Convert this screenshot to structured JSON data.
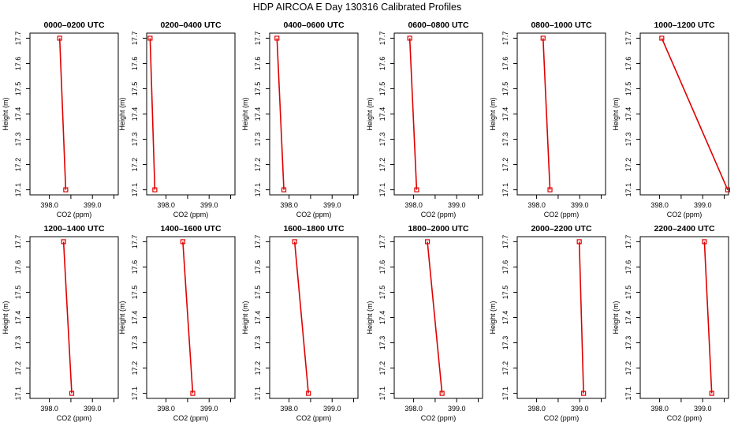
{
  "figure": {
    "title": "HDP AIRCOA E  Day 130316  Calibrated Profiles"
  },
  "style": {
    "line_color": "#e00000",
    "marker_color": "#e00000",
    "axis_color": "#000000",
    "background": "#ffffff"
  },
  "chart_data": [
    {
      "type": "line",
      "title": "0000–0200 UTC",
      "xlabel": "CO2 (ppm)",
      "ylabel": "Height (m)",
      "xlim": [
        397.55,
        399.6
      ],
      "ylim": [
        17.08,
        17.72
      ],
      "xticks": [
        398.0,
        398.5,
        399.0,
        399.5
      ],
      "xtick_labels": [
        "398.0",
        "",
        "399.0",
        ""
      ],
      "yticks": [
        17.1,
        17.2,
        17.3,
        17.4,
        17.5,
        17.6,
        17.7
      ],
      "series": [
        {
          "x": [
            398.24,
            398.38
          ],
          "y": [
            17.7,
            17.1
          ]
        }
      ]
    },
    {
      "type": "line",
      "title": "0200–0400 UTC",
      "xlabel": "CO2 (ppm)",
      "ylabel": "Height (m)",
      "xlim": [
        397.55,
        399.6
      ],
      "ylim": [
        17.08,
        17.72
      ],
      "xticks": [
        398.0,
        398.5,
        399.0,
        399.5
      ],
      "xtick_labels": [
        "398.0",
        "",
        "399.0",
        ""
      ],
      "yticks": [
        17.1,
        17.2,
        17.3,
        17.4,
        17.5,
        17.6,
        17.7
      ],
      "series": [
        {
          "x": [
            397.63,
            397.74
          ],
          "y": [
            17.7,
            17.1
          ]
        }
      ]
    },
    {
      "type": "line",
      "title": "0400–0600 UTC",
      "xlabel": "CO2 (ppm)",
      "ylabel": "Height (m)",
      "xlim": [
        397.55,
        399.6
      ],
      "ylim": [
        17.08,
        17.72
      ],
      "xticks": [
        398.0,
        398.5,
        399.0,
        399.5
      ],
      "xtick_labels": [
        "398.0",
        "",
        "399.0",
        ""
      ],
      "yticks": [
        17.1,
        17.2,
        17.3,
        17.4,
        17.5,
        17.6,
        17.7
      ],
      "series": [
        {
          "x": [
            397.72,
            397.88
          ],
          "y": [
            17.7,
            17.1
          ]
        }
      ]
    },
    {
      "type": "line",
      "title": "0600–0800 UTC",
      "xlabel": "CO2 (ppm)",
      "ylabel": "Height (m)",
      "xlim": [
        397.55,
        399.6
      ],
      "ylim": [
        17.08,
        17.72
      ],
      "xticks": [
        398.0,
        398.5,
        399.0,
        399.5
      ],
      "xtick_labels": [
        "398.0",
        "",
        "399.0",
        ""
      ],
      "yticks": [
        17.1,
        17.2,
        17.3,
        17.4,
        17.5,
        17.6,
        17.7
      ],
      "series": [
        {
          "x": [
            397.91,
            398.07
          ],
          "y": [
            17.7,
            17.1
          ]
        }
      ]
    },
    {
      "type": "line",
      "title": "0800–1000 UTC",
      "xlabel": "CO2 (ppm)",
      "ylabel": "Height (m)",
      "xlim": [
        397.55,
        399.6
      ],
      "ylim": [
        17.08,
        17.72
      ],
      "xticks": [
        398.0,
        398.5,
        399.0,
        399.5
      ],
      "xtick_labels": [
        "398.0",
        "",
        "399.0",
        ""
      ],
      "yticks": [
        17.1,
        17.2,
        17.3,
        17.4,
        17.5,
        17.6,
        17.7
      ],
      "series": [
        {
          "x": [
            398.15,
            398.31
          ],
          "y": [
            17.7,
            17.1
          ]
        }
      ]
    },
    {
      "type": "line",
      "title": "1000–1200 UTC",
      "xlabel": "CO2 (ppm)",
      "ylabel": "Height (m)",
      "xlim": [
        397.55,
        399.6
      ],
      "ylim": [
        17.08,
        17.72
      ],
      "xticks": [
        398.0,
        398.5,
        399.0,
        399.5
      ],
      "xtick_labels": [
        "398.0",
        "",
        "399.0",
        ""
      ],
      "yticks": [
        17.1,
        17.2,
        17.3,
        17.4,
        17.5,
        17.6,
        17.7
      ],
      "series": [
        {
          "x": [
            398.05,
            399.58
          ],
          "y": [
            17.7,
            17.1
          ]
        }
      ]
    },
    {
      "type": "line",
      "title": "1200–1400 UTC",
      "xlabel": "CO2 (ppm)",
      "ylabel": "Height (m)",
      "xlim": [
        397.55,
        399.6
      ],
      "ylim": [
        17.08,
        17.72
      ],
      "xticks": [
        398.0,
        398.5,
        399.0,
        399.5
      ],
      "xtick_labels": [
        "398.0",
        "",
        "399.0",
        ""
      ],
      "yticks": [
        17.1,
        17.2,
        17.3,
        17.4,
        17.5,
        17.6,
        17.7
      ],
      "series": [
        {
          "x": [
            398.33,
            398.52
          ],
          "y": [
            17.7,
            17.1
          ]
        }
      ]
    },
    {
      "type": "line",
      "title": "1400–1600 UTC",
      "xlabel": "CO2 (ppm)",
      "ylabel": "Height (m)",
      "xlim": [
        397.55,
        399.6
      ],
      "ylim": [
        17.08,
        17.72
      ],
      "xticks": [
        398.0,
        398.5,
        399.0,
        399.5
      ],
      "xtick_labels": [
        "398.0",
        "",
        "399.0",
        ""
      ],
      "yticks": [
        17.1,
        17.2,
        17.3,
        17.4,
        17.5,
        17.6,
        17.7
      ],
      "series": [
        {
          "x": [
            398.39,
            398.62
          ],
          "y": [
            17.7,
            17.1
          ]
        }
      ]
    },
    {
      "type": "line",
      "title": "1600–1800 UTC",
      "xlabel": "CO2 (ppm)",
      "ylabel": "Height (m)",
      "xlim": [
        397.55,
        399.6
      ],
      "ylim": [
        17.08,
        17.72
      ],
      "xticks": [
        398.0,
        398.5,
        399.0,
        399.5
      ],
      "xtick_labels": [
        "398.0",
        "",
        "399.0",
        ""
      ],
      "yticks": [
        17.1,
        17.2,
        17.3,
        17.4,
        17.5,
        17.6,
        17.7
      ],
      "series": [
        {
          "x": [
            398.13,
            398.45
          ],
          "y": [
            17.7,
            17.1
          ]
        }
      ]
    },
    {
      "type": "line",
      "title": "1800–2000 UTC",
      "xlabel": "CO2 (ppm)",
      "ylabel": "Height (m)",
      "xlim": [
        397.55,
        399.6
      ],
      "ylim": [
        17.08,
        17.72
      ],
      "xticks": [
        398.0,
        398.5,
        399.0,
        399.5
      ],
      "xtick_labels": [
        "398.0",
        "",
        "399.0",
        ""
      ],
      "yticks": [
        17.1,
        17.2,
        17.3,
        17.4,
        17.5,
        17.6,
        17.7
      ],
      "series": [
        {
          "x": [
            398.32,
            398.66
          ],
          "y": [
            17.7,
            17.1
          ]
        }
      ]
    },
    {
      "type": "line",
      "title": "2000–2200 UTC",
      "xlabel": "CO2 (ppm)",
      "ylabel": "Height (m)",
      "xlim": [
        397.55,
        399.6
      ],
      "ylim": [
        17.08,
        17.72
      ],
      "xticks": [
        398.0,
        398.5,
        399.0,
        399.5
      ],
      "xtick_labels": [
        "398.0",
        "",
        "399.0",
        ""
      ],
      "yticks": [
        17.1,
        17.2,
        17.3,
        17.4,
        17.5,
        17.6,
        17.7
      ],
      "series": [
        {
          "x": [
            398.99,
            399.09
          ],
          "y": [
            17.7,
            17.1
          ]
        }
      ]
    },
    {
      "type": "line",
      "title": "2200–2400 UTC",
      "xlabel": "CO2 (ppm)",
      "ylabel": "Height (m)",
      "xlim": [
        397.55,
        399.6
      ],
      "ylim": [
        17.08,
        17.72
      ],
      "xticks": [
        398.0,
        398.5,
        399.0,
        399.5
      ],
      "xtick_labels": [
        "398.0",
        "",
        "399.0",
        ""
      ],
      "yticks": [
        17.1,
        17.2,
        17.3,
        17.4,
        17.5,
        17.6,
        17.7
      ],
      "series": [
        {
          "x": [
            399.04,
            399.21
          ],
          "y": [
            17.7,
            17.1
          ]
        }
      ]
    }
  ]
}
